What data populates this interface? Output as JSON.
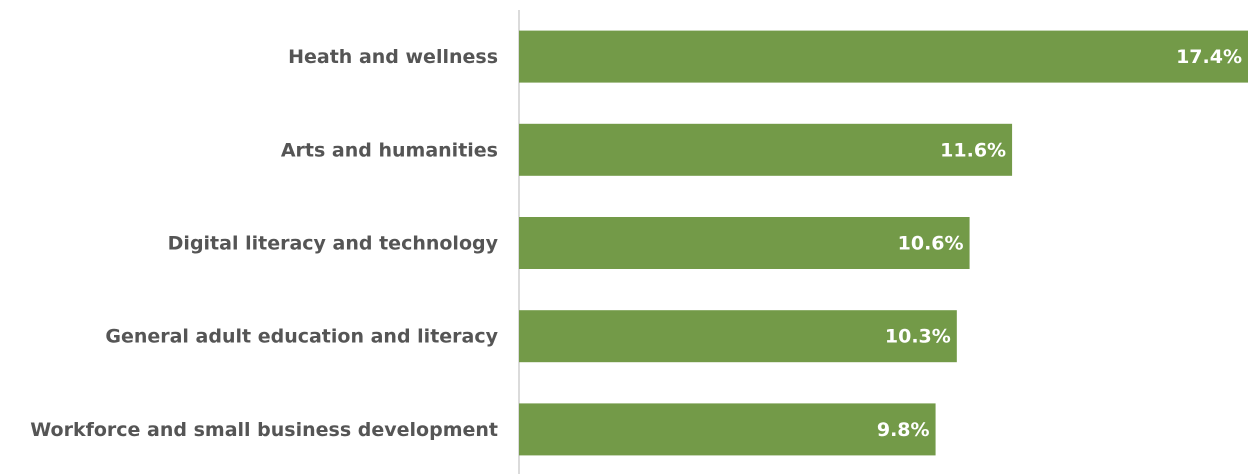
{
  "chart_data": {
    "type": "bar",
    "orientation": "horizontal",
    "categories": [
      "Heath and wellness",
      "Arts and humanities",
      "Digital literacy and technology",
      "General adult education and literacy",
      "Workforce and small business development"
    ],
    "values": [
      17.4,
      11.6,
      10.6,
      10.3,
      9.8
    ],
    "value_labels": [
      "17.4%",
      "11.6%",
      "10.6%",
      "10.3%",
      "9.8%"
    ],
    "color": "#739a48",
    "xlim": [
      0,
      17.15
    ]
  }
}
